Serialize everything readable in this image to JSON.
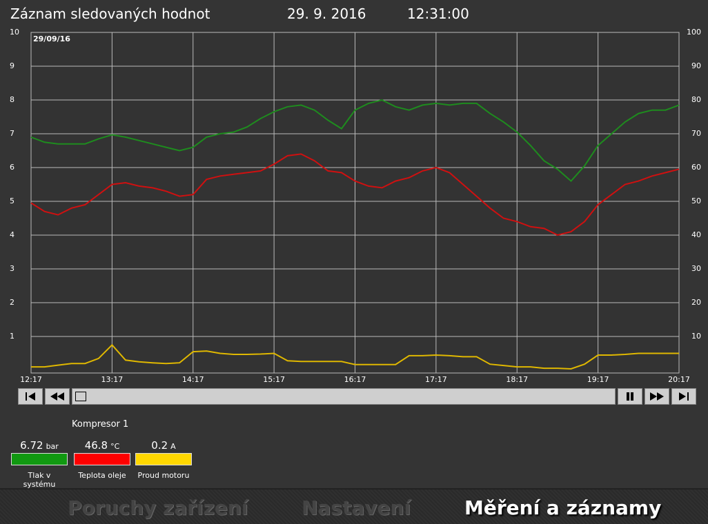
{
  "header": {
    "title": "Záznam sledovaných hodnot",
    "date": "29. 9. 2016",
    "time": "12:31:00"
  },
  "chart_data": {
    "type": "line",
    "date_label": "29/09/16",
    "x": [
      "12:17",
      "12:27",
      "12:37",
      "12:47",
      "12:57",
      "13:07",
      "13:17",
      "13:27",
      "13:37",
      "13:47",
      "13:57",
      "14:07",
      "14:17",
      "14:27",
      "14:37",
      "14:47",
      "14:57",
      "15:07",
      "15:17",
      "15:27",
      "15:37",
      "15:47",
      "15:57",
      "16:07",
      "16:17",
      "16:27",
      "16:37",
      "16:47",
      "16:57",
      "17:07",
      "17:17",
      "17:27",
      "17:37",
      "17:47",
      "17:57",
      "18:07",
      "18:17",
      "18:27",
      "18:37",
      "18:47",
      "18:57",
      "19:07",
      "19:17",
      "19:27",
      "19:37",
      "19:47",
      "19:57",
      "20:07",
      "20:17"
    ],
    "xticks": [
      "12:17",
      "13:17",
      "14:17",
      "15:17",
      "16:17",
      "17:17",
      "18:17",
      "19:17",
      "20:17"
    ],
    "ylim": [
      0,
      10
    ],
    "yticks": [
      1,
      2,
      3,
      4,
      5,
      6,
      7,
      8,
      9,
      10
    ],
    "y2lim": [
      0,
      100
    ],
    "y2ticks": [
      10,
      20,
      30,
      40,
      50,
      60,
      70,
      80,
      90,
      100
    ],
    "grid": true,
    "series": [
      {
        "name": "Tlak v systému",
        "color": "#1e8c1e",
        "axis": "y",
        "readout": 6.72,
        "unit": "bar",
        "values": [
          6.9,
          6.75,
          6.7,
          6.7,
          6.7,
          6.85,
          6.97,
          6.9,
          6.8,
          6.7,
          6.6,
          6.5,
          6.6,
          6.9,
          7.0,
          7.05,
          7.2,
          7.45,
          7.65,
          7.8,
          7.85,
          7.7,
          7.4,
          7.15,
          7.7,
          7.9,
          8.0,
          7.8,
          7.7,
          7.85,
          7.9,
          7.85,
          7.9,
          7.9,
          7.6,
          7.35,
          7.05,
          6.65,
          6.2,
          5.95,
          5.6,
          6.05,
          6.65,
          7.0,
          7.35,
          7.6,
          7.7,
          7.7,
          7.85
        ]
      },
      {
        "name": "Teplota oleje",
        "color": "#d01010",
        "axis": "y2",
        "readout": 46.8,
        "unit": "°C",
        "values": [
          49.5,
          47,
          46,
          48,
          49,
          52,
          55,
          55.5,
          54.5,
          54,
          53,
          51.5,
          52,
          56.5,
          57.5,
          58,
          58.5,
          59,
          61,
          63.5,
          64,
          62,
          59,
          58.5,
          56,
          54.5,
          54,
          56,
          57,
          59,
          60,
          58.5,
          55,
          51.5,
          48,
          45,
          44,
          42.5,
          42,
          40,
          41,
          44,
          49,
          52,
          55,
          56,
          57.5,
          58.5,
          59.5
        ]
      },
      {
        "name": "Proud motoru",
        "color": "#e0b800",
        "axis": "y",
        "readout": 0.2,
        "unit": "A",
        "values": [
          0.1,
          0.1,
          0.15,
          0.2,
          0.2,
          0.35,
          0.75,
          0.3,
          0.25,
          0.22,
          0.2,
          0.22,
          0.55,
          0.57,
          0.5,
          0.47,
          0.47,
          0.48,
          0.5,
          0.28,
          0.26,
          0.26,
          0.26,
          0.26,
          0.17,
          0.17,
          0.17,
          0.17,
          0.43,
          0.43,
          0.45,
          0.43,
          0.4,
          0.4,
          0.18,
          0.14,
          0.1,
          0.1,
          0.06,
          0.06,
          0.04,
          0.18,
          0.45,
          0.45,
          0.47,
          0.5,
          0.5,
          0.5,
          0.5
        ]
      }
    ]
  },
  "device": "Kompresor 1",
  "tabs": [
    "Poruchy zařízení",
    "Nastavení",
    "Měření a záznamy"
  ]
}
